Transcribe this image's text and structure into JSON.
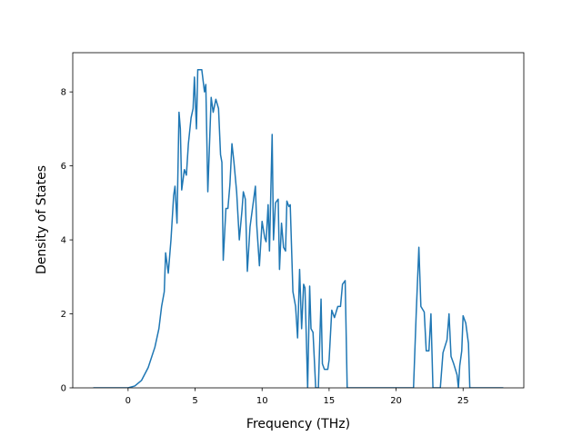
{
  "chart_data": {
    "type": "line",
    "x_label": "Frequency (THz)",
    "y_label": "Density of States",
    "color": "#1f77b4",
    "xlim": [
      -4.13,
      29.53
    ],
    "ylim": [
      0,
      9.06
    ],
    "xticks": [
      0,
      5,
      10,
      15,
      20,
      25
    ],
    "yticks": [
      0,
      2,
      4,
      6,
      8
    ],
    "x": [
      -2.6,
      0,
      0.5,
      1,
      1.5,
      2,
      2.3,
      2.5,
      2.7,
      2.8,
      3.0,
      3.2,
      3.4,
      3.5,
      3.65,
      3.8,
      3.9,
      4.0,
      4.2,
      4.35,
      4.5,
      4.7,
      4.85,
      4.95,
      5.1,
      5.2,
      5.5,
      5.7,
      5.8,
      5.95,
      6.2,
      6.35,
      6.55,
      6.75,
      6.9,
      7.0,
      7.1,
      7.3,
      7.45,
      7.6,
      7.75,
      7.9,
      8.1,
      8.3,
      8.5,
      8.6,
      8.75,
      8.9,
      9.1,
      9.3,
      9.5,
      9.6,
      9.8,
      10.0,
      10.2,
      10.3,
      10.45,
      10.55,
      10.75,
      10.85,
      11.0,
      11.2,
      11.3,
      11.45,
      11.6,
      11.75,
      11.85,
      12.0,
      12.1,
      12.3,
      12.5,
      12.65,
      12.8,
      12.95,
      13.1,
      13.2,
      13.4,
      13.55,
      13.65,
      13.8,
      14.0,
      14.2,
      14.4,
      14.5,
      14.65,
      14.9,
      15.0,
      15.2,
      15.4,
      15.65,
      15.85,
      16.0,
      16.2,
      16.35,
      21.3,
      21.5,
      21.7,
      21.85,
      22.1,
      22.25,
      22.45,
      22.6,
      22.75,
      23.3,
      23.5,
      23.8,
      23.95,
      24.1,
      24.3,
      24.55,
      24.65,
      24.75,
      24.9,
      25.0,
      25.2,
      25.4,
      25.5,
      28.0
    ],
    "values": [
      0,
      0,
      0.05,
      0.2,
      0.55,
      1.1,
      1.6,
      2.2,
      2.6,
      3.65,
      3.1,
      4.0,
      5.2,
      5.45,
      4.45,
      7.45,
      7.0,
      5.35,
      5.9,
      5.75,
      6.6,
      7.3,
      7.55,
      8.4,
      7.0,
      8.6,
      8.6,
      8.0,
      8.2,
      5.3,
      7.85,
      7.45,
      7.8,
      7.55,
      6.3,
      6.1,
      3.45,
      4.85,
      4.85,
      5.5,
      6.6,
      6.1,
      5.3,
      4.0,
      4.8,
      5.3,
      5.1,
      3.15,
      4.35,
      4.9,
      5.45,
      4.4,
      3.3,
      4.5,
      4.05,
      3.95,
      4.95,
      3.7,
      6.85,
      4.0,
      5.0,
      5.1,
      3.2,
      4.45,
      3.8,
      3.7,
      5.05,
      4.9,
      4.95,
      2.6,
      2.2,
      1.35,
      3.2,
      1.6,
      2.8,
      2.7,
      0,
      2.75,
      1.6,
      1.5,
      0,
      0,
      2.4,
      0.65,
      0.5,
      0.5,
      0.75,
      2.1,
      1.9,
      2.2,
      2.2,
      2.8,
      2.9,
      0,
      0,
      2.0,
      3.8,
      2.2,
      2.05,
      1.0,
      1.0,
      2.0,
      0,
      0,
      0.95,
      1.3,
      2.0,
      0.85,
      0.65,
      0.35,
      0,
      0.6,
      1.0,
      1.95,
      1.75,
      1.2,
      0,
      0
    ]
  }
}
